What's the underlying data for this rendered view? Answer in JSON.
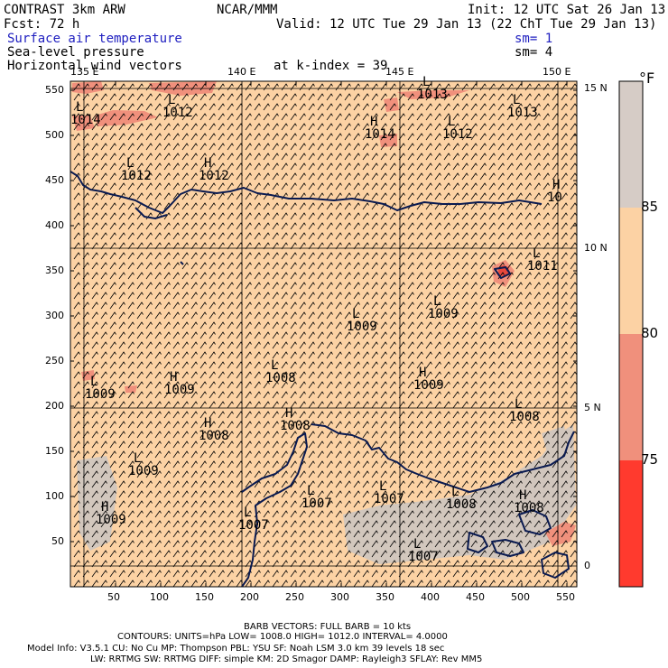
{
  "header": {
    "model": "CONTRAST  3km ARW",
    "org": "NCAR/MMM",
    "init": "Init: 12 UTC Sat 26 Jan 13",
    "fcst": "Fcst:   72 h",
    "valid": "Valid: 12 UTC Tue 29 Jan 13 (22 ChT Tue 29 Jan 13)",
    "field1": "Surface air temperature",
    "field1_sm": "sm= 1",
    "field2": "Sea-level pressure",
    "field2_sm": "sm= 4",
    "field3": "Horizontal wind vectors",
    "k_index": "at k-index =  39"
  },
  "colors": {
    "field_blue": "#2020c0",
    "bg_land_sea": "#fcd2a4",
    "warm_patch": "#f0907c",
    "hot_patch": "#e8483c",
    "cloud_gray": "#cdc5c0",
    "coast": "#0a1a50"
  },
  "colorbar": {
    "unit": "°F",
    "labels": [
      "85",
      "80",
      "75"
    ],
    "segments": [
      "#d6ccc6",
      "#fcd2a4",
      "#f0907c",
      "#ff3a2e"
    ]
  },
  "axes": {
    "x_ticks": [
      "50",
      "100",
      "150",
      "200",
      "250",
      "300",
      "350",
      "400",
      "450",
      "500",
      "550"
    ],
    "y_ticks": [
      "550",
      "500",
      "450",
      "400",
      "350",
      "300",
      "250",
      "200",
      "150",
      "100",
      "50"
    ],
    "lon_labels": [
      "135 E",
      "140 E",
      "145 E",
      "150 E"
    ],
    "lat_labels": [
      "15 N",
      "10 N",
      "5 N",
      "0"
    ]
  },
  "pressure_labels": [
    {
      "letter": "L",
      "value": "1014"
    },
    {
      "letter": "L",
      "value": "1012"
    },
    {
      "letter": "L",
      "value": "1012"
    },
    {
      "letter": "H",
      "value": "1012"
    },
    {
      "letter": "L",
      "value": "1013"
    },
    {
      "letter": "H",
      "value": "1014"
    },
    {
      "letter": "L",
      "value": "1012"
    },
    {
      "letter": "L",
      "value": "1013"
    },
    {
      "letter": "H",
      "value": "10"
    },
    {
      "letter": "L",
      "value": "1011"
    },
    {
      "letter": "L",
      "value": "1009"
    },
    {
      "letter": "L",
      "value": "1009"
    },
    {
      "letter": "L",
      "value": "1009"
    },
    {
      "letter": "H",
      "value": "1009"
    },
    {
      "letter": "L",
      "value": "1008"
    },
    {
      "letter": "H",
      "value": "1009"
    },
    {
      "letter": "H",
      "value": "1008"
    },
    {
      "letter": "H",
      "value": "1008"
    },
    {
      "letter": "L",
      "value": "1008"
    },
    {
      "letter": "L",
      "value": "1009"
    },
    {
      "letter": "H",
      "value": "1009"
    },
    {
      "letter": "L",
      "value": "1007"
    },
    {
      "letter": "L",
      "value": "1007"
    },
    {
      "letter": "L",
      "value": "1008"
    },
    {
      "letter": "H",
      "value": "1008"
    },
    {
      "letter": "L",
      "value": "1007"
    },
    {
      "letter": "L",
      "value": "1007"
    }
  ],
  "footer": {
    "barb": "BARB VECTORS:  FULL BARB = 10 kts",
    "contours": "CONTOURS:  UNITS=hPa  LOW=   1008.0        HIGH=   1012.0        INTERVAL=     4.0000",
    "model_info": "Model Info: V3.5.1     CU: No Cu       MP: Thompson      PBL: YSU         SF: Noah LSM     3.0 km   39 levels    18 sec",
    "model_info2": "LW: RRTMG      SW: RRTMG   DIFF: simple KM: 2D Smagor DAMP: Rayleigh3   SFLAY: Rev MM5"
  }
}
